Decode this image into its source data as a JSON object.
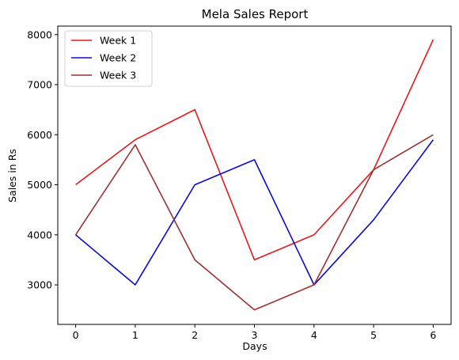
{
  "chart_data": {
    "type": "line",
    "title": "Mela Sales Report",
    "xlabel": "Days",
    "ylabel": "Sales in Rs",
    "x": [
      0,
      1,
      2,
      3,
      4,
      5,
      6
    ],
    "xticks": [
      "0",
      "1",
      "2",
      "3",
      "4",
      "5",
      "6"
    ],
    "yticks": [
      "3000",
      "4000",
      "5000",
      "6000",
      "7000",
      "8000"
    ],
    "ylim": [
      2210,
      8170
    ],
    "xlim": [
      -0.3,
      6.3
    ],
    "grid": false,
    "legend_position": "top-left",
    "series": [
      {
        "name": "Week 1",
        "color": "#e31a1c",
        "values": [
          5000,
          5900,
          6500,
          3500,
          4000,
          5300,
          7900
        ]
      },
      {
        "name": "Week 2",
        "color": "#0b0bcf",
        "values": [
          4000,
          3000,
          5000,
          5500,
          3000,
          4300,
          5900
        ]
      },
      {
        "name": "Week 3",
        "color": "#9a3232",
        "values": [
          4000,
          5800,
          3500,
          2500,
          3000,
          5300,
          6000
        ]
      }
    ]
  }
}
